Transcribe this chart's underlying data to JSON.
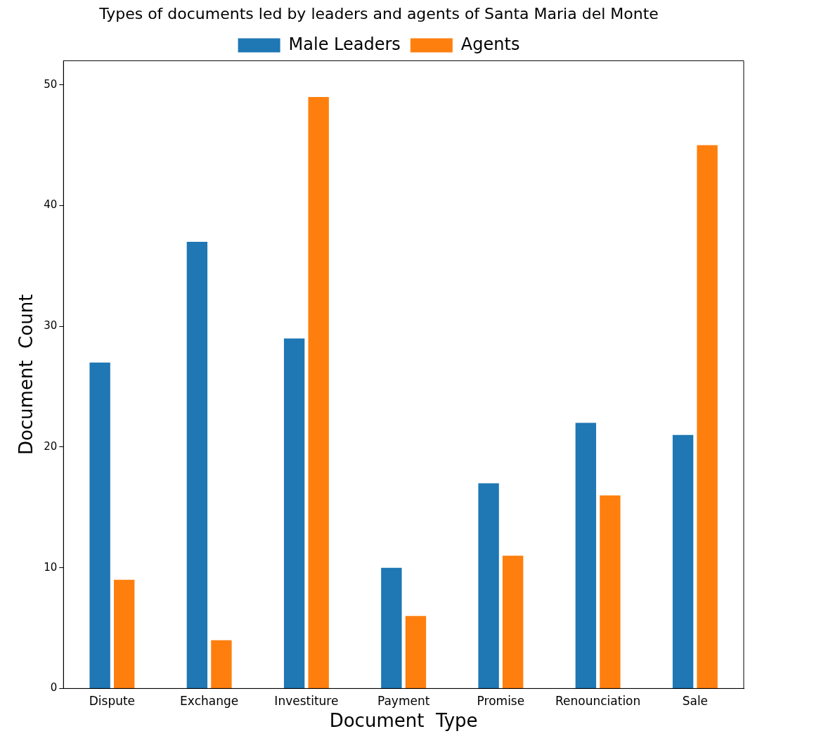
{
  "chart_data": {
    "type": "bar",
    "title": "Types of documents led by leaders and agents of Santa Maria del Monte",
    "xlabel": "Document  Type",
    "ylabel": "Document  Count",
    "categories": [
      "Dispute",
      "Exchange",
      "Investiture",
      "Payment",
      "Promise",
      "Renounciation",
      "Sale"
    ],
    "series": [
      {
        "name": "Male Leaders",
        "color": "#1f77b4",
        "values": [
          27,
          37,
          29,
          10,
          17,
          22,
          21
        ]
      },
      {
        "name": "Agents",
        "color": "#ff7f0e",
        "values": [
          9,
          4,
          49,
          6,
          11,
          16,
          45
        ]
      }
    ],
    "ylim": [
      0,
      52
    ],
    "yticks": [
      0,
      10,
      20,
      30,
      40,
      50
    ],
    "grid": false,
    "legend": "top"
  }
}
